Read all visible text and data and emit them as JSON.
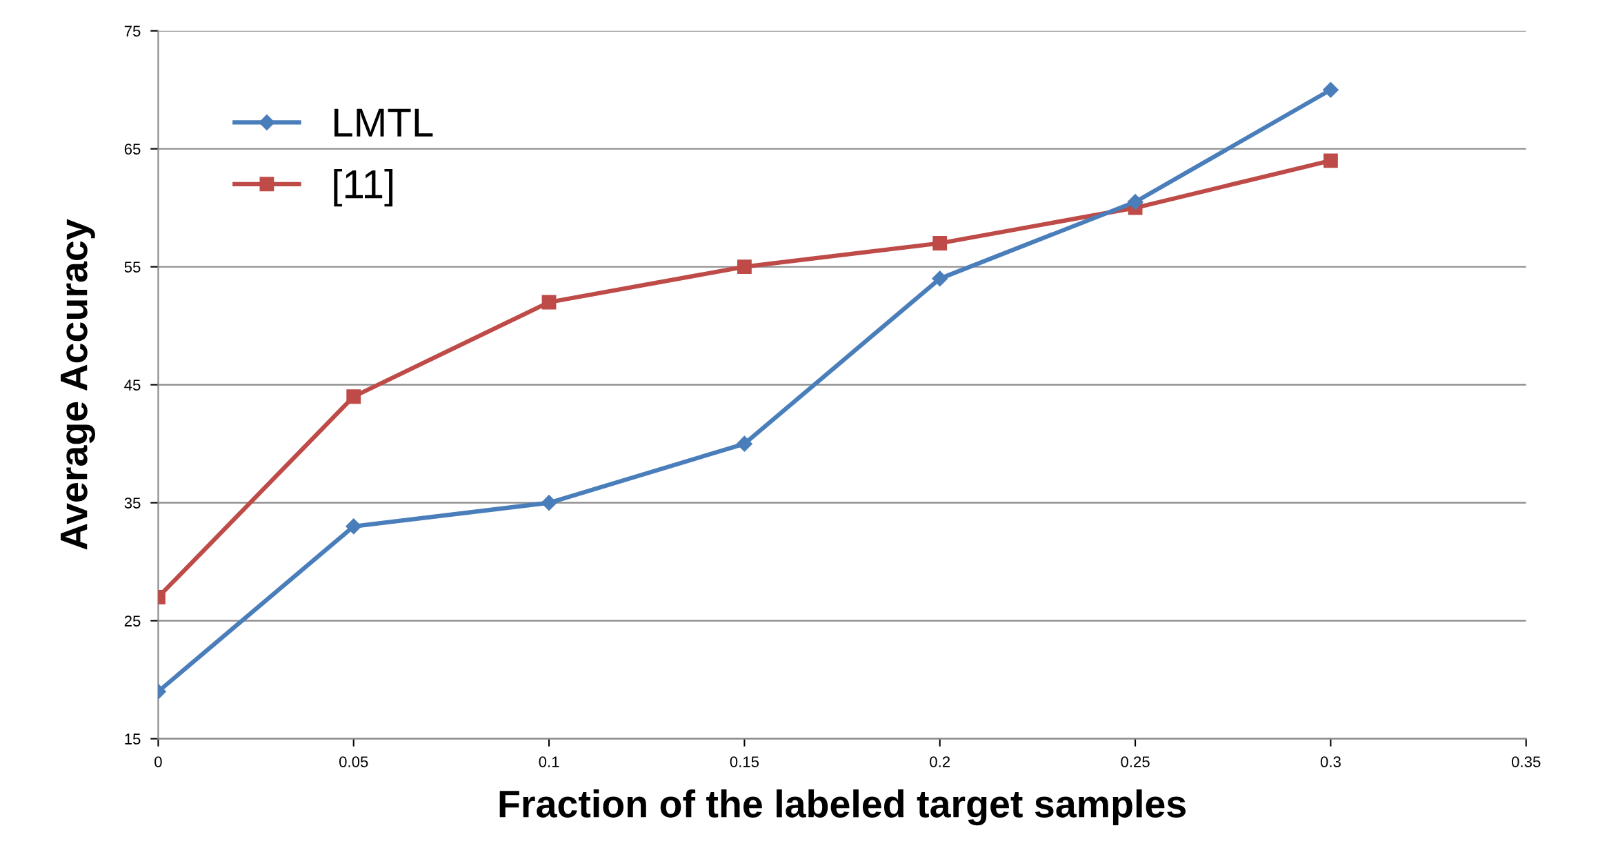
{
  "chart_data": {
    "type": "line",
    "xlabel": "Fraction of the labeled target samples",
    "ylabel": "Average Accuracy",
    "x": [
      0,
      0.05,
      0.1,
      0.15,
      0.2,
      0.25,
      0.3
    ],
    "series": [
      {
        "name": "LMTL",
        "color": "#4a7ebb",
        "marker": "diamond",
        "values": [
          19,
          33,
          35,
          40,
          54,
          60.5,
          70
        ]
      },
      {
        "name": "[11]",
        "color": "#be4b48",
        "marker": "square",
        "values": [
          27,
          44,
          52,
          55,
          57,
          60,
          64
        ]
      }
    ],
    "xlim": [
      0,
      0.35
    ],
    "xticks": [
      0,
      0.05,
      0.1,
      0.15,
      0.2,
      0.25,
      0.3,
      0.35
    ],
    "ylim": [
      15,
      75
    ],
    "yticks": [
      15,
      25,
      35,
      45,
      55,
      65,
      75
    ],
    "grid": "y",
    "legend": "top left",
    "line_style": "solid"
  }
}
